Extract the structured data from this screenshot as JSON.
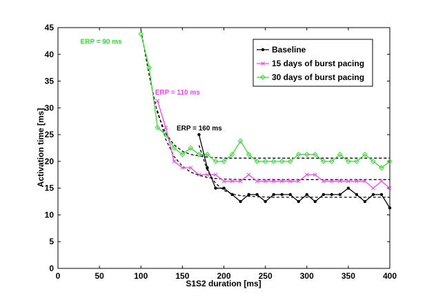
{
  "chart_data": {
    "type": "line",
    "xlabel": "S1S2 duration [ms]",
    "ylabel": "Activation time [ms]",
    "xlim": [
      0,
      400
    ],
    "ylim": [
      0,
      45
    ],
    "xticks": [
      0,
      50,
      100,
      150,
      200,
      250,
      300,
      350,
      400
    ],
    "yticks": [
      0,
      5,
      10,
      15,
      20,
      25,
      30,
      35,
      40,
      45
    ],
    "grid": false,
    "legend_position": "top-right",
    "series": [
      {
        "name": "Baseline",
        "color": "#000000",
        "marker": "dot",
        "x": [
          170,
          180,
          190,
          200,
          210,
          220,
          230,
          240,
          250,
          260,
          270,
          280,
          290,
          300,
          310,
          320,
          330,
          340,
          350,
          360,
          370,
          380,
          390,
          400
        ],
        "y": [
          25.0,
          18.8,
          15.0,
          15.0,
          13.8,
          12.5,
          13.8,
          13.8,
          12.5,
          13.8,
          13.8,
          13.8,
          12.5,
          13.8,
          12.5,
          13.8,
          13.8,
          13.8,
          15.0,
          13.8,
          12.5,
          13.8,
          13.8,
          11.3
        ]
      },
      {
        "name": "15 days of burst pacing",
        "color": "#ff44ff",
        "marker": "x",
        "x": [
          120,
          130,
          140,
          150,
          160,
          170,
          180,
          190,
          200,
          210,
          220,
          230,
          240,
          250,
          260,
          270,
          280,
          290,
          300,
          310,
          320,
          330,
          340,
          350,
          360,
          370,
          380,
          390,
          400
        ],
        "y": [
          31.3,
          26.3,
          20.0,
          18.8,
          18.8,
          17.5,
          17.5,
          17.5,
          16.3,
          16.3,
          16.3,
          17.5,
          16.3,
          16.3,
          16.3,
          16.3,
          16.3,
          16.3,
          17.5,
          17.5,
          16.3,
          16.3,
          16.3,
          16.3,
          16.3,
          16.3,
          15.0,
          16.3,
          15.0
        ]
      },
      {
        "name": "30 days of burst pacing",
        "color": "#33dd33",
        "marker": "diamond",
        "x": [
          100,
          110,
          120,
          130,
          140,
          150,
          160,
          170,
          180,
          190,
          200,
          210,
          220,
          230,
          240,
          250,
          260,
          270,
          280,
          290,
          300,
          310,
          320,
          330,
          340,
          350,
          360,
          370,
          380,
          390,
          400
        ],
        "y": [
          43.8,
          37.5,
          26.3,
          25.0,
          22.5,
          21.3,
          22.5,
          21.3,
          21.3,
          20.0,
          20.0,
          21.3,
          23.8,
          21.3,
          20.0,
          20.0,
          20.0,
          20.0,
          20.0,
          21.3,
          21.3,
          21.3,
          20.0,
          20.0,
          21.3,
          20.0,
          20.0,
          21.3,
          20.0,
          18.8,
          20.0
        ]
      }
    ],
    "fits": [
      {
        "color": "#000000",
        "x": [
          170,
          180,
          190,
          200,
          210,
          220,
          240,
          260,
          280,
          300,
          320,
          340,
          360,
          380,
          400
        ],
        "y": [
          23.0,
          18.3,
          15.9,
          14.6,
          13.9,
          13.6,
          13.4,
          13.3,
          13.3,
          13.3,
          13.3,
          13.3,
          13.3,
          13.3,
          13.3
        ]
      },
      {
        "color": "#000000",
        "x": [
          120,
          130,
          140,
          150,
          160,
          170,
          180,
          190,
          200,
          220,
          240,
          260,
          280,
          300,
          320,
          340,
          360,
          380,
          400
        ],
        "y": [
          29.5,
          24.1,
          20.9,
          19.1,
          18.0,
          17.4,
          17.0,
          16.8,
          16.7,
          16.6,
          16.6,
          16.6,
          16.6,
          16.6,
          16.6,
          16.6,
          16.6,
          16.6,
          16.6
        ]
      },
      {
        "color": "#000000",
        "x": [
          100,
          110,
          120,
          130,
          140,
          150,
          160,
          170,
          180,
          190,
          200,
          220,
          240,
          260,
          280,
          300,
          320,
          340,
          360,
          380,
          400
        ],
        "y": [
          44.5,
          36.0,
          29.0,
          25.2,
          23.1,
          21.9,
          21.3,
          21.0,
          20.8,
          20.7,
          20.6,
          20.6,
          20.6,
          20.6,
          20.6,
          20.6,
          20.6,
          20.6,
          20.6,
          20.6,
          20.6
        ]
      }
    ],
    "annotations": [
      {
        "text": "ERP = 90 ms",
        "color": "#33dd33",
        "x": 27,
        "y": 42
      },
      {
        "text": "ERP = 110 ms",
        "color": "#ff44ff",
        "x": 117,
        "y": 32.5
      },
      {
        "text": "ERP = 160 ms",
        "color": "#000000",
        "x": 143,
        "y": 25.8
      }
    ]
  }
}
